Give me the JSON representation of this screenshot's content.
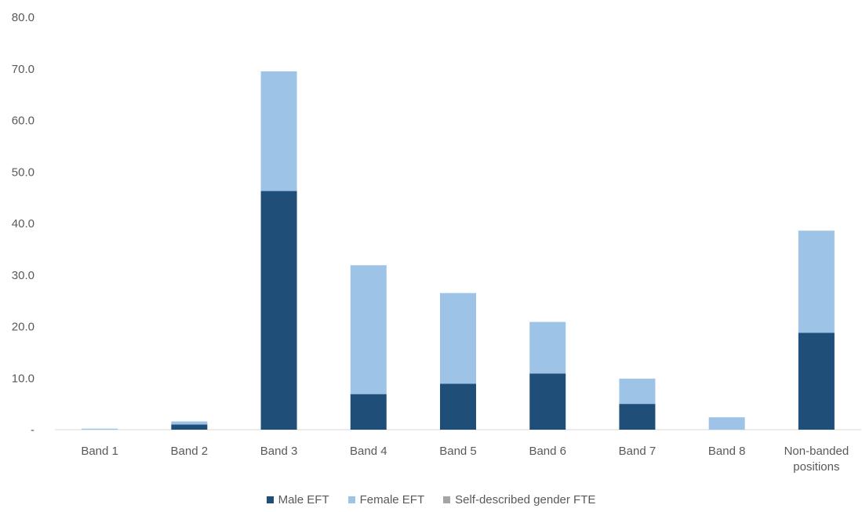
{
  "chart_data": {
    "type": "bar",
    "stacked": true,
    "title": "",
    "xlabel": "",
    "ylabel": "",
    "ylim": [
      0,
      80
    ],
    "yticks": [
      "-",
      "10.0",
      "20.0",
      "30.0",
      "40.0",
      "50.0",
      "60.0",
      "70.0",
      "80.0"
    ],
    "categories": [
      "Band 1",
      "Band 2",
      "Band 3",
      "Band 4",
      "Band 5",
      "Band 6",
      "Band 7",
      "Band 8",
      "Non-banded positions"
    ],
    "category_lines": [
      [
        "Band 1"
      ],
      [
        "Band 2"
      ],
      [
        "Band 3"
      ],
      [
        "Band 4"
      ],
      [
        "Band 5"
      ],
      [
        "Band 6"
      ],
      [
        "Band 7"
      ],
      [
        "Band 8"
      ],
      [
        "Non-banded",
        "positions"
      ]
    ],
    "series": [
      {
        "name": "Male EFT",
        "color": "#1f4e79",
        "values": [
          0.0,
          1.0,
          46.3,
          6.9,
          8.9,
          10.9,
          5.0,
          0.0,
          18.8
        ]
      },
      {
        "name": "Female EFT",
        "color": "#9dc3e6",
        "values": [
          0.2,
          0.6,
          23.2,
          25.0,
          17.6,
          10.0,
          4.9,
          2.4,
          19.8
        ]
      },
      {
        "name": "Self-described gender FTE",
        "color": "#a5a5a5",
        "values": [
          0.0,
          0.0,
          0.0,
          0.0,
          0.0,
          0.0,
          0.0,
          0.0,
          0.0
        ]
      }
    ],
    "grid": false,
    "legend_position": "bottom"
  }
}
